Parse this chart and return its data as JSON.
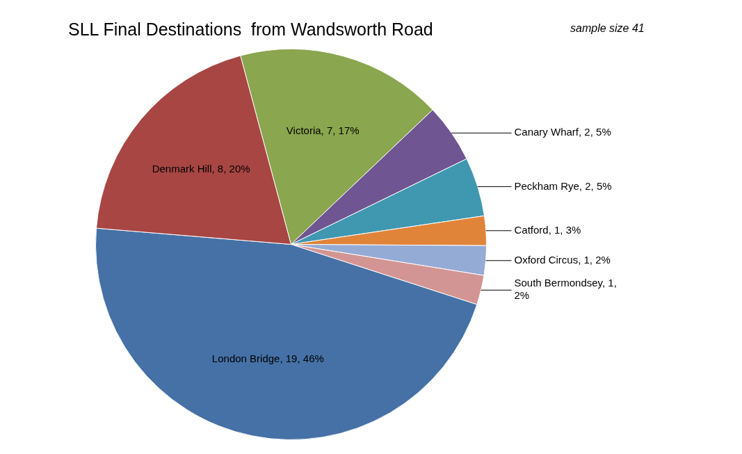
{
  "chart_data": {
    "type": "pie",
    "title": "SLL Final Destinations  from Wandsworth Road",
    "annotations": [
      "sample size 41"
    ],
    "categories": [
      "Victoria",
      "Canary Wharf",
      "Peckham Rye",
      "Catford",
      "Oxford Circus",
      "South Bermondsey",
      "London Bridge",
      "Denmark Hill"
    ],
    "values": [
      7,
      2,
      2,
      1,
      1,
      1,
      19,
      8
    ],
    "value_labels": [
      "7, 17%",
      "2, 5%",
      "2, 5%",
      "1, 3%",
      "1, 2%",
      "1, 2%",
      "19, 46%",
      "8, 20%"
    ],
    "colors": [
      "#8aa64e",
      "#6f5591",
      "#3f98b0",
      "#e0843a",
      "#94abd5",
      "#d39593",
      "#4571a6",
      "#a84644"
    ],
    "legend": false
  }
}
